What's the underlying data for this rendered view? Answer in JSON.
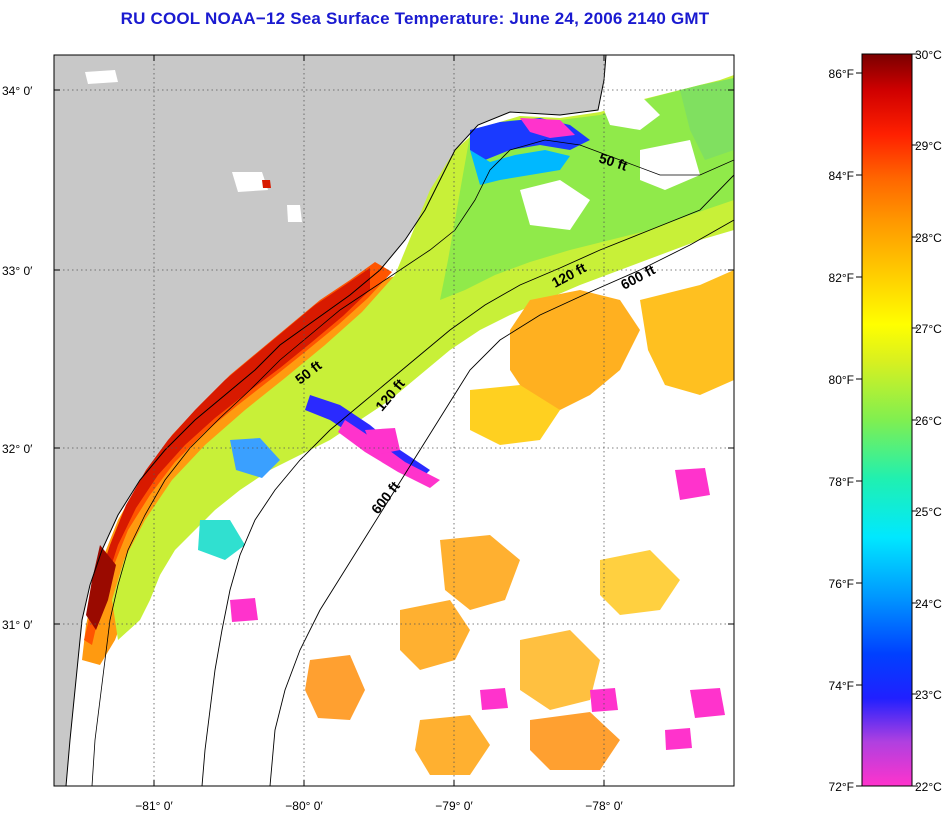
{
  "title": "RU COOL  NOAA−12  Sea Surface Temperature:  June 24, 2006 2140 GMT",
  "colors": {
    "land": "#c8c8c8",
    "cloud": "#ffffff",
    "grid": "#555555"
  },
  "map": {
    "lat_labels": [
      "34° 0′",
      "33° 0′",
      "32° 0′",
      "31° 0′"
    ],
    "lon_labels": [
      "−81° 0′",
      "−80° 0′",
      "−79° 0′",
      "−78° 0′"
    ],
    "contour_labels": [
      "50 ft",
      "120 ft",
      "600 ft",
      "50 ft",
      "120 ft",
      "600 ft"
    ]
  },
  "colorbar": {
    "f_labels": [
      "86°F",
      "84°F",
      "82°F",
      "80°F",
      "78°F",
      "76°F",
      "74°F",
      "72°F"
    ],
    "c_labels": [
      "30°C",
      "29°C",
      "28°C",
      "27°C",
      "26°C",
      "25°C",
      "24°C",
      "23°C",
      "22°C"
    ],
    "c_range": [
      22,
      30
    ],
    "f_range": [
      72,
      86
    ]
  }
}
